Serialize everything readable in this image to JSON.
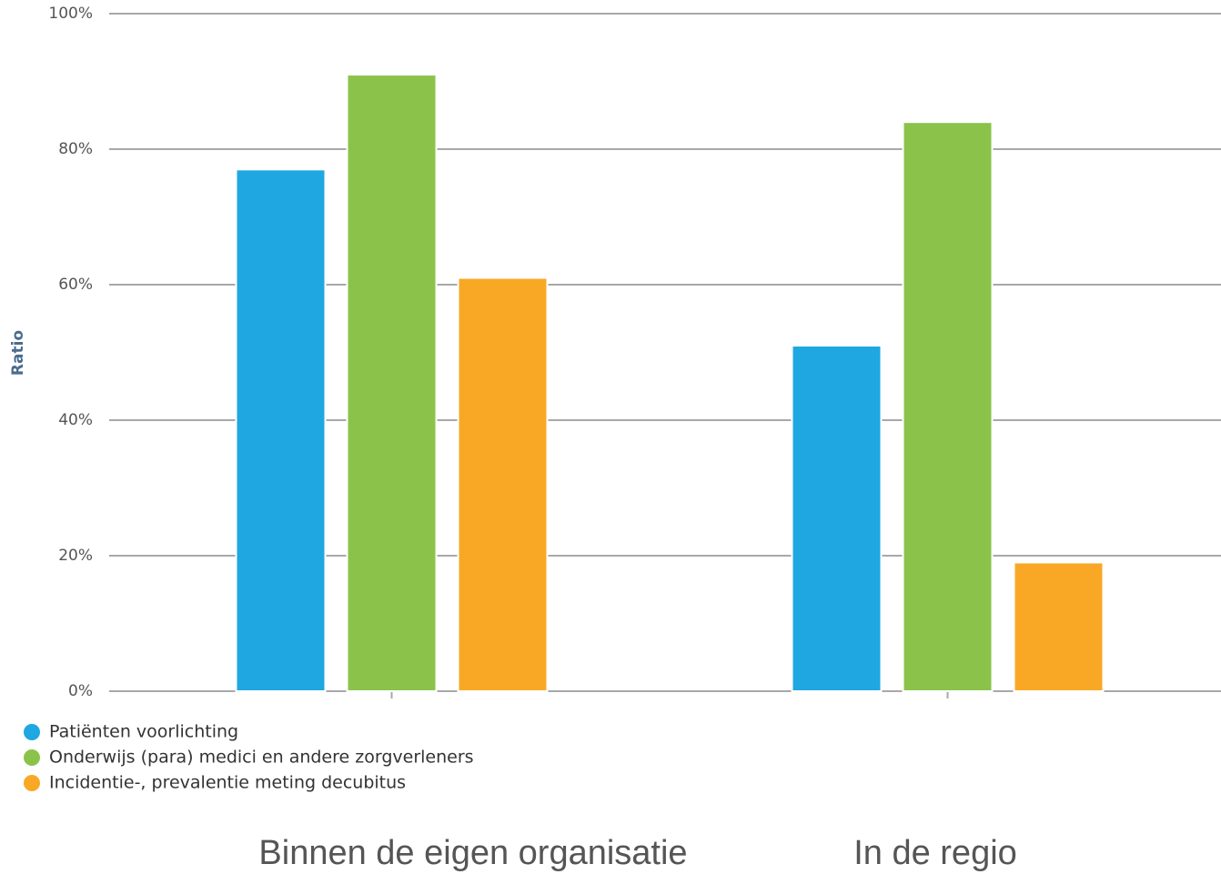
{
  "chart_data": {
    "type": "bar",
    "y_label": "Ratio",
    "categories": [
      "Binnen de eigen organisatie",
      "In de regio"
    ],
    "series": [
      {
        "name": "Patiënten voorlichting",
        "color": "#1ea7e0",
        "values": [
          77,
          51
        ]
      },
      {
        "name": "Onderwijs (para) medici en andere zorgverleners",
        "color": "#8bc34a",
        "values": [
          91,
          84
        ]
      },
      {
        "name": "Incidentie-, prevalentie meting decubitus",
        "color": "#f9a825",
        "values": [
          61,
          19
        ]
      }
    ],
    "ylim": [
      0,
      100
    ],
    "yticks": [
      {
        "value": 0,
        "label": "0%"
      },
      {
        "value": 20,
        "label": "20%"
      },
      {
        "value": 40,
        "label": "40%"
      },
      {
        "value": 60,
        "label": "60%"
      },
      {
        "value": 80,
        "label": "80%"
      },
      {
        "value": 100,
        "label": "100%"
      }
    ],
    "grid": true,
    "legend": "bottom-left"
  }
}
